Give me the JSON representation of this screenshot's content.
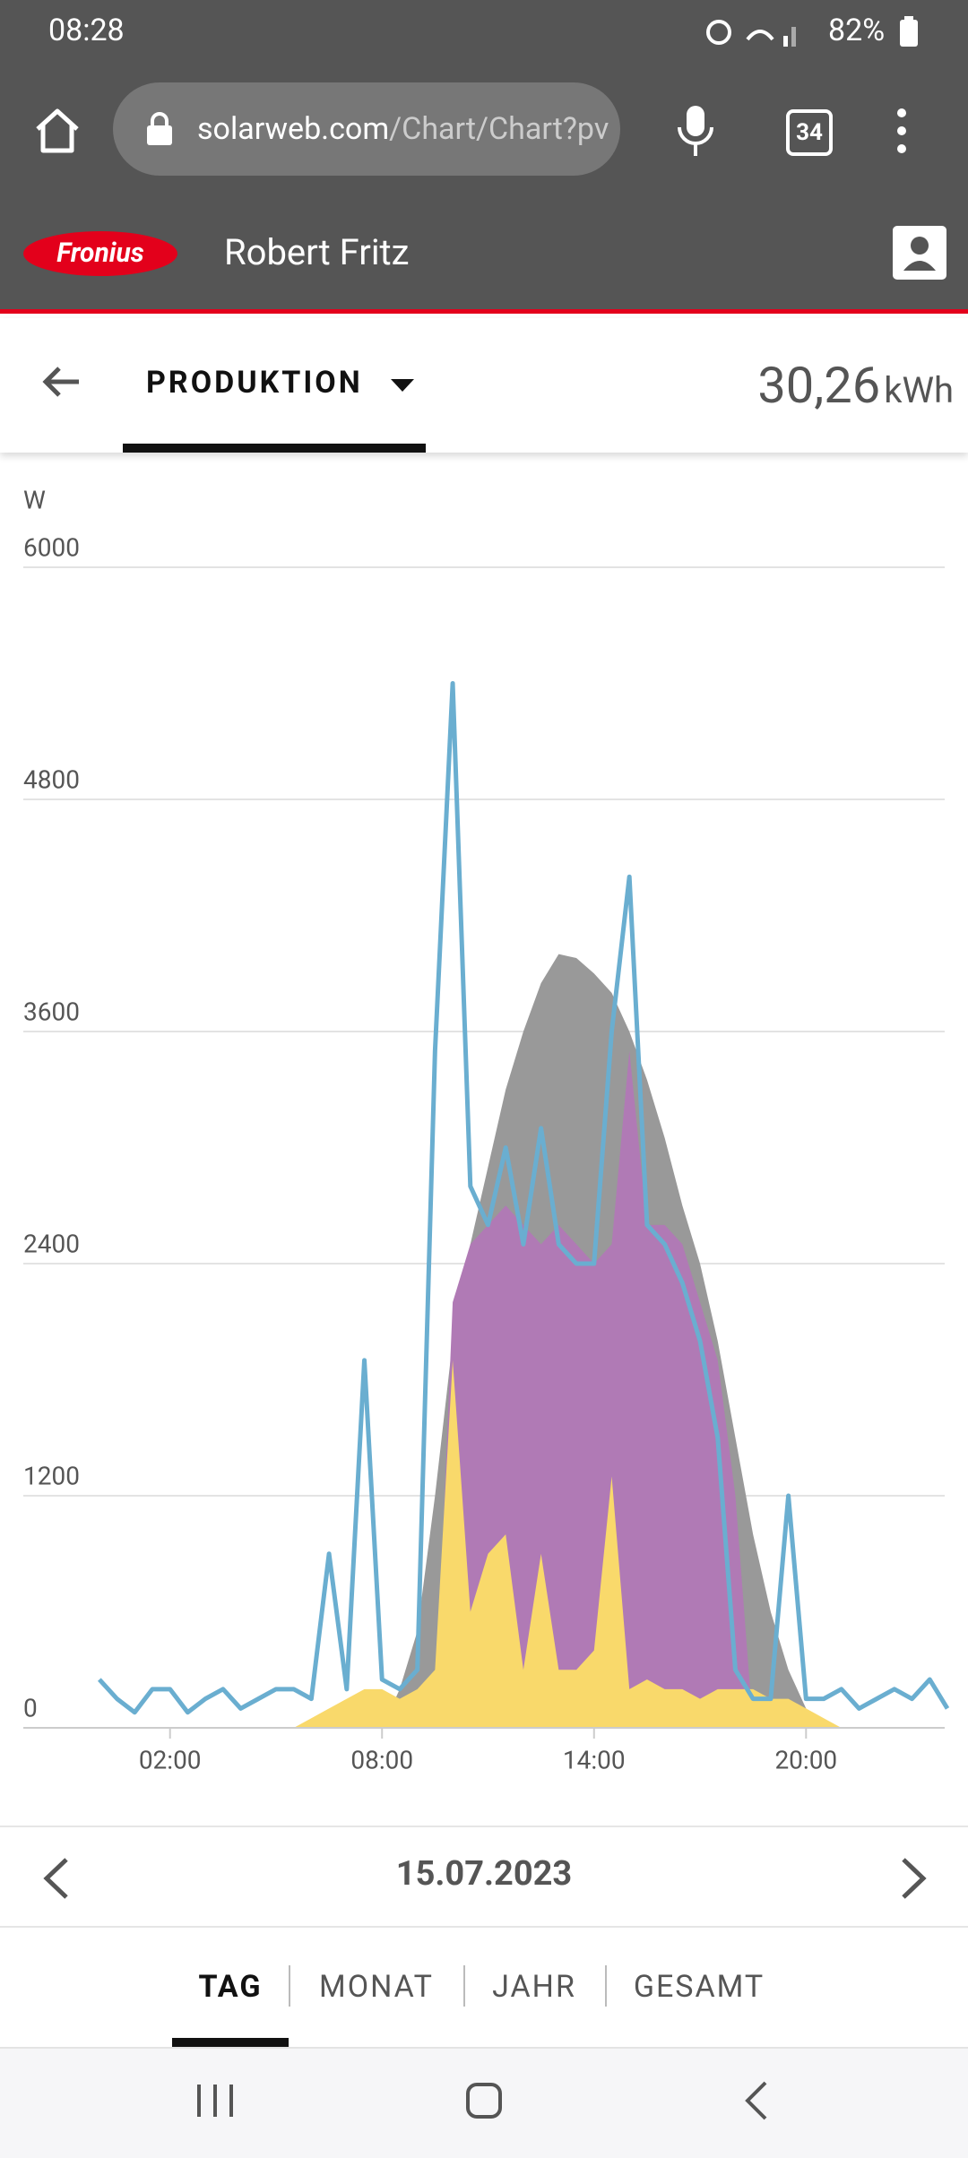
{
  "status_bar": {
    "time": "08:28",
    "battery": "82%"
  },
  "browser": {
    "url_host": "solarweb.com",
    "url_path": "/Chart/Chart?pv",
    "tab_count": "34"
  },
  "header": {
    "logo": "Fronius",
    "user": "Robert Fritz"
  },
  "toolbar": {
    "view": "PRODUKTION",
    "total": "30,26",
    "unit": "kWh"
  },
  "chart_data": {
    "type": "area",
    "y_label": "W",
    "x": [
      0,
      0.5,
      1,
      1.5,
      2,
      2.5,
      3,
      3.5,
      4,
      4.5,
      5,
      5.5,
      6,
      6.5,
      7,
      7.5,
      8,
      8.5,
      9,
      9.5,
      10,
      10.5,
      11,
      11.5,
      12,
      12.5,
      13,
      13.5,
      14,
      14.5,
      15,
      15.5,
      16,
      16.5,
      17,
      17.5,
      18,
      18.5,
      19,
      19.5,
      20,
      20.5,
      21,
      21.5,
      22,
      22.5,
      23,
      23.5,
      24
    ],
    "xlim": [
      -2,
      24
    ],
    "xticks": [
      {
        "value": 2,
        "label": "02:00"
      },
      {
        "value": 8,
        "label": "08:00"
      },
      {
        "value": 14,
        "label": "14:00"
      },
      {
        "value": 20,
        "label": "20:00"
      }
    ],
    "ylim": [
      0,
      6000
    ],
    "yticks": [
      0,
      1200,
      2400,
      3600,
      4800,
      6000
    ],
    "grid": true,
    "series": [
      {
        "type": "area",
        "color": "#999999",
        "values": [
          0,
          0,
          0,
          0,
          0,
          0,
          0,
          0,
          0,
          0,
          0,
          0,
          0,
          0,
          0,
          0,
          0,
          200,
          500,
          1200,
          2000,
          2500,
          2900,
          3300,
          3600,
          3850,
          4000,
          3980,
          3900,
          3800,
          3600,
          3350,
          3050,
          2700,
          2400,
          2000,
          1500,
          1000,
          600,
          300,
          100,
          0,
          0,
          0,
          0,
          0,
          0,
          0,
          0
        ]
      },
      {
        "type": "area",
        "color": "#b07ab5",
        "values": [
          0,
          0,
          0,
          0,
          0,
          0,
          0,
          0,
          0,
          0,
          0,
          0,
          0,
          0,
          0,
          0,
          0,
          0,
          0,
          0,
          2200,
          2500,
          2600,
          2700,
          2600,
          2500,
          2600,
          2500,
          2400,
          2500,
          3500,
          2600,
          2600,
          2500,
          2200,
          1900,
          1200,
          0,
          0,
          0,
          0,
          0,
          0,
          0,
          0,
          0,
          0,
          0,
          0
        ]
      },
      {
        "type": "area",
        "color": "#f9d96b",
        "values": [
          0,
          0,
          0,
          0,
          0,
          0,
          0,
          0,
          0,
          0,
          0,
          0,
          50,
          100,
          150,
          200,
          200,
          150,
          200,
          300,
          1900,
          600,
          900,
          1000,
          300,
          900,
          300,
          300,
          400,
          1300,
          200,
          250,
          200,
          200,
          150,
          200,
          200,
          200,
          150,
          150,
          100,
          50,
          0,
          0,
          0,
          0,
          0,
          0,
          0
        ]
      },
      {
        "type": "line",
        "color": "#6aaed0",
        "values": [
          250,
          150,
          80,
          200,
          200,
          80,
          150,
          200,
          100,
          150,
          200,
          200,
          150,
          900,
          200,
          1900,
          250,
          200,
          300,
          3500,
          5400,
          2800,
          2600,
          3000,
          2500,
          3100,
          2500,
          2400,
          2400,
          3600,
          4400,
          2600,
          2500,
          2300,
          2000,
          1500,
          300,
          150,
          150,
          1200,
          150,
          150,
          200,
          100,
          150,
          200,
          150,
          250,
          100
        ]
      }
    ]
  },
  "date_nav": {
    "date": "15.07.2023"
  },
  "period_tabs": [
    "TAG",
    "MONAT",
    "JAHR",
    "GESAMT"
  ]
}
